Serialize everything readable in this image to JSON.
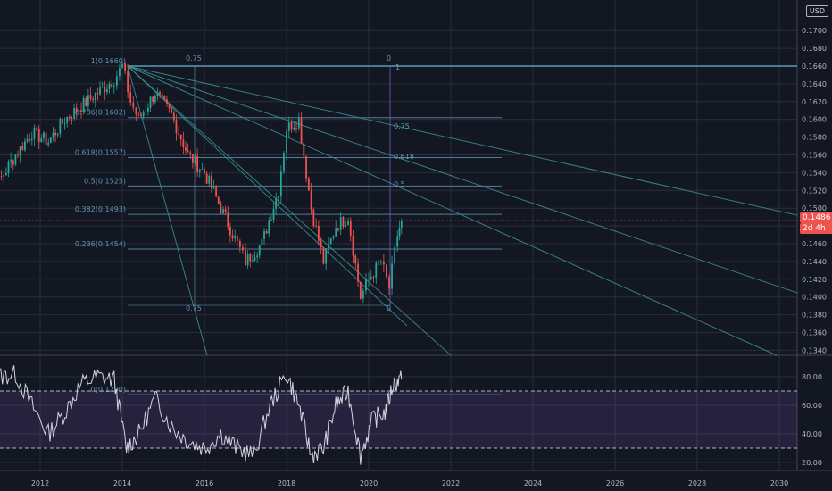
{
  "currency": "USD",
  "last_price": "0.1486",
  "countdown": "2d 4h",
  "price_axis": [
    "0.1700",
    "0.1680",
    "0.1660",
    "0.1640",
    "0.1620",
    "0.1600",
    "0.1580",
    "0.1560",
    "0.1540",
    "0.1520",
    "0.1500",
    "0.1480",
    "0.1460",
    "0.1440",
    "0.1420",
    "0.1400",
    "0.1380",
    "0.1360",
    "0.1340"
  ],
  "rsi_axis": [
    "80.00",
    "60.00",
    "40.00",
    "20.00"
  ],
  "time_axis": [
    "2012",
    "2014",
    "2016",
    "2018",
    "2020",
    "2022",
    "2024",
    "2026",
    "2028",
    "2030"
  ],
  "fib_levels": [
    {
      "label": "1(0.1660)",
      "price": 0.166
    },
    {
      "label": "0.786(0.1602)",
      "price": 0.1602
    },
    {
      "label": "0.618(0.1557)",
      "price": 0.1557
    },
    {
      "label": "0.5(0.1525)",
      "price": 0.1525
    },
    {
      "label": "0.382(0.1493)",
      "price": 0.1493
    },
    {
      "label": "0.236(0.1454)",
      "price": 0.1454
    },
    {
      "label": "0(0.1290)",
      "price": 0.129
    }
  ],
  "fan_labels": [
    "0.75",
    "0.618",
    "0.5"
  ],
  "grid_labels": [
    "0.75",
    "0",
    "1",
    "0.75",
    "0"
  ],
  "colors": {
    "bg": "#131722",
    "up": "#26a69a",
    "down": "#ef5350",
    "fib": "#5f98b8",
    "fan": "#3d9a9a",
    "rsi": "#d1d4dc",
    "rsi_band": "#7e57c2",
    "grid": "#2a2e39"
  },
  "chart_data": [
    {
      "type": "line",
      "name": "price",
      "x": [
        2010.6,
        2011.0,
        2011.4,
        2011.8,
        2012.2,
        2012.6,
        2013.0,
        2013.4,
        2013.8,
        2014.0,
        2014.2,
        2014.4,
        2014.8,
        2015.2,
        2015.6,
        2016.0,
        2016.4,
        2016.8,
        2017.0,
        2017.4,
        2017.8,
        2018.0,
        2018.3,
        2018.6,
        2018.9,
        2019.2,
        2019.5,
        2019.8,
        2020.0,
        2020.3,
        2020.5,
        2020.7,
        2020.8
      ],
      "y": [
        0.15,
        0.153,
        0.156,
        0.1585,
        0.1575,
        0.16,
        0.1615,
        0.163,
        0.1645,
        0.166,
        0.162,
        0.16,
        0.163,
        0.1605,
        0.156,
        0.154,
        0.15,
        0.146,
        0.144,
        0.146,
        0.152,
        0.159,
        0.16,
        0.15,
        0.144,
        0.148,
        0.149,
        0.14,
        0.142,
        0.144,
        0.141,
        0.147,
        0.1486
      ]
    },
    {
      "type": "line",
      "name": "RSI",
      "x": [
        2010.6,
        2011.0,
        2011.4,
        2011.8,
        2012.2,
        2012.6,
        2013.0,
        2013.4,
        2013.8,
        2014.1,
        2014.4,
        2014.8,
        2015.2,
        2015.6,
        2016.0,
        2016.4,
        2016.8,
        2017.2,
        2017.6,
        2018.0,
        2018.3,
        2018.6,
        2018.9,
        2019.2,
        2019.5,
        2019.8,
        2020.1,
        2020.4,
        2020.6,
        2020.8
      ],
      "y": [
        70,
        80,
        82,
        60,
        40,
        55,
        75,
        80,
        78,
        30,
        40,
        65,
        45,
        35,
        30,
        40,
        30,
        25,
        60,
        82,
        60,
        25,
        30,
        60,
        70,
        25,
        50,
        55,
        75,
        78
      ],
      "ylim": [
        15,
        90
      ]
    }
  ]
}
